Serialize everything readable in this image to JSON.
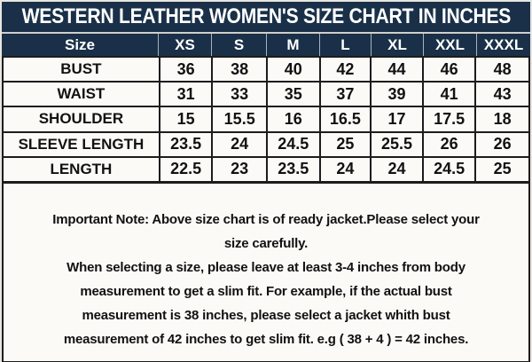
{
  "title": "WESTERN LEATHER WOMEN'S SIZE CHART IN INCHES",
  "table": {
    "header": [
      "Size",
      "XS",
      "S",
      "M",
      "L",
      "XL",
      "XXL",
      "XXXL"
    ],
    "rows": [
      {
        "label": "BUST",
        "values": [
          "36",
          "38",
          "40",
          "42",
          "44",
          "46",
          "48"
        ]
      },
      {
        "label": "WAIST",
        "values": [
          "31",
          "33",
          "35",
          "37",
          "39",
          "41",
          "43"
        ]
      },
      {
        "label": "SHOULDER",
        "values": [
          "15",
          "15.5",
          "16",
          "16.5",
          "17",
          "17.5",
          "18"
        ]
      },
      {
        "label": "SLEEVE LENGTH",
        "values": [
          "23.5",
          "24",
          "24.5",
          "25",
          "25.5",
          "26",
          "26"
        ]
      },
      {
        "label": "LENGTH",
        "values": [
          "22.5",
          "23",
          "23.5",
          "24",
          "24",
          "24.5",
          "25"
        ]
      }
    ]
  },
  "note": {
    "lines": [
      "Important Note: Above size chart is of ready jacket.Please select your",
      "size carefully.",
      "When selecting a size, please leave at least 3-4 inches from body",
      "measurement to get a slim fit. For example, if the actual bust",
      "measurement is 38 inches, please select a jacket whith bust",
      "measurement of 42 inches to get slim fit. e.g ( 38 + 4 ) = 42 inches."
    ]
  },
  "chart_data": {
    "type": "table",
    "title": "WESTERN LEATHER WOMEN'S SIZE CHART IN INCHES",
    "columns": [
      "Size",
      "XS",
      "S",
      "M",
      "L",
      "XL",
      "XXL",
      "XXXL"
    ],
    "rows": [
      [
        "BUST",
        "36",
        "38",
        "40",
        "42",
        "44",
        "46",
        "48"
      ],
      [
        "WAIST",
        "31",
        "33",
        "35",
        "37",
        "39",
        "41",
        "43"
      ],
      [
        "SHOULDER",
        "15",
        "15.5",
        "16",
        "16.5",
        "17",
        "17.5",
        "18"
      ],
      [
        "SLEEVE LENGTH",
        "23.5",
        "24",
        "24.5",
        "25",
        "25.5",
        "26",
        "26"
      ],
      [
        "LENGTH",
        "22.5",
        "23",
        "23.5",
        "24",
        "24",
        "24.5",
        "25"
      ]
    ]
  },
  "colors": {
    "navy": "#1a3049",
    "header_text": "#ffffff",
    "text": "#111111",
    "line": "#1c1c1c",
    "cell_bg": "#fbfaf7",
    "page_bg": "#e9e6e1",
    "navy_sep": "#a9b2bc",
    "light_sep": "#cfcfca"
  }
}
